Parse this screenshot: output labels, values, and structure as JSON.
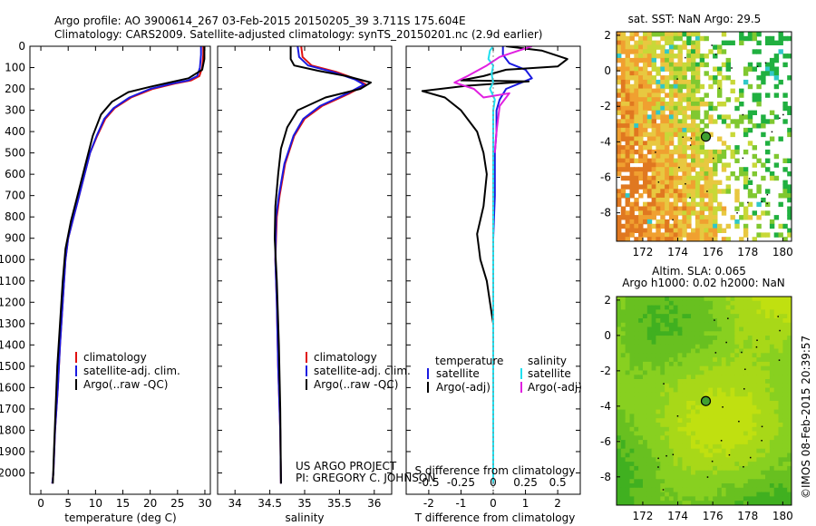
{
  "header": {
    "title_line1": "Argo profile: AO 3900614_267 03-Feb-2015 20150205_39 3.711S 175.604E",
    "title_line2": "Climatology: CARS2009. Satellite-adjusted climatology: synTS_20150201.nc (2.9d earlier)"
  },
  "credit": {
    "project": "US ARGO PROJECT",
    "pi": "PI: GREGORY C. JOHNSON"
  },
  "watermark": "©IMOS 08-Feb-2015 20:39:57",
  "colors": {
    "climatology": "#e01010",
    "satellite": "#1a1ae0",
    "argo": "#000000",
    "sal_satellite": "#20e0f0",
    "sal_argo": "#e020e0"
  },
  "chart_data": [
    {
      "type": "line",
      "id": "temperature",
      "xlabel": "temperature (deg C)",
      "ylim": [
        2100,
        0
      ],
      "xlim": [
        -2,
        31
      ],
      "xticks": [
        0,
        5,
        10,
        15,
        20,
        25,
        30
      ],
      "yticks": [
        0,
        100,
        200,
        300,
        400,
        500,
        600,
        700,
        800,
        900,
        1000,
        1100,
        1200,
        1300,
        1400,
        1500,
        1600,
        1700,
        1800,
        1900,
        2000
      ],
      "legend": [
        "climatology",
        "satellite-adj. clim.",
        "Argo(..raw -QC)"
      ],
      "series": [
        {
          "name": "climatology",
          "color": "#e01010",
          "points": [
            [
              29.7,
              0
            ],
            [
              29.7,
              40
            ],
            [
              29.5,
              100
            ],
            [
              29.0,
              140
            ],
            [
              27.5,
              160
            ],
            [
              24.5,
              175
            ],
            [
              20.5,
              200
            ],
            [
              16.5,
              240
            ],
            [
              13.5,
              290
            ],
            [
              11.8,
              340
            ],
            [
              10.3,
              420
            ],
            [
              9.0,
              500
            ],
            [
              8.0,
              600
            ],
            [
              7.0,
              700
            ],
            [
              6.0,
              800
            ],
            [
              5.0,
              900
            ],
            [
              4.5,
              1000
            ],
            [
              4.0,
              1200
            ],
            [
              3.5,
              1400
            ],
            [
              3.1,
              1600
            ],
            [
              2.6,
              1800
            ],
            [
              2.3,
              2000
            ],
            [
              2.1,
              2050
            ]
          ]
        },
        {
          "name": "satellite-adj. clim.",
          "color": "#1a1ae0",
          "points": [
            [
              29.3,
              0
            ],
            [
              29.3,
              40
            ],
            [
              29.1,
              100
            ],
            [
              28.6,
              140
            ],
            [
              27.0,
              160
            ],
            [
              24.0,
              175
            ],
            [
              20.0,
              200
            ],
            [
              16.2,
              240
            ],
            [
              13.3,
              290
            ],
            [
              11.6,
              340
            ],
            [
              10.2,
              420
            ],
            [
              9.0,
              500
            ],
            [
              8.0,
              600
            ],
            [
              7.0,
              700
            ],
            [
              6.0,
              800
            ],
            [
              5.0,
              900
            ],
            [
              4.5,
              1000
            ],
            [
              4.0,
              1200
            ],
            [
              3.5,
              1400
            ],
            [
              3.1,
              1600
            ],
            [
              2.6,
              1800
            ],
            [
              2.3,
              2000
            ],
            [
              2.1,
              2050
            ]
          ]
        },
        {
          "name": "Argo(..raw -QC)",
          "color": "#000000",
          "points": [
            [
              29.9,
              0
            ],
            [
              29.9,
              60
            ],
            [
              29.5,
              110
            ],
            [
              27.0,
              150
            ],
            [
              23.5,
              170
            ],
            [
              20.0,
              190
            ],
            [
              16.0,
              215
            ],
            [
              13.0,
              260
            ],
            [
              11.0,
              320
            ],
            [
              9.5,
              420
            ],
            [
              8.5,
              520
            ],
            [
              7.5,
              620
            ],
            [
              6.5,
              720
            ],
            [
              5.5,
              820
            ],
            [
              4.5,
              950
            ],
            [
              4.0,
              1100
            ],
            [
              3.5,
              1300
            ],
            [
              3.0,
              1500
            ],
            [
              2.7,
              1700
            ],
            [
              2.4,
              1900
            ],
            [
              2.2,
              2050
            ]
          ]
        }
      ]
    },
    {
      "type": "line",
      "id": "salinity",
      "xlabel": "salinity",
      "ylim": [
        2100,
        0
      ],
      "xlim": [
        33.75,
        36.25
      ],
      "xticks": [
        34,
        34.5,
        35,
        35.5,
        36
      ],
      "legend": [
        "climatology",
        "satellite-adj. clim.",
        "Argo(..raw -QC)"
      ],
      "series": [
        {
          "name": "climatology",
          "color": "#e01010",
          "points": [
            [
              34.95,
              0
            ],
            [
              34.97,
              50
            ],
            [
              35.1,
              90
            ],
            [
              35.45,
              120
            ],
            [
              35.75,
              155
            ],
            [
              35.88,
              180
            ],
            [
              35.65,
              220
            ],
            [
              35.25,
              280
            ],
            [
              35.0,
              340
            ],
            [
              34.85,
              420
            ],
            [
              34.72,
              550
            ],
            [
              34.64,
              700
            ],
            [
              34.6,
              800
            ],
            [
              34.58,
              1000
            ],
            [
              34.6,
              1200
            ],
            [
              34.62,
              1500
            ],
            [
              34.65,
              1800
            ],
            [
              34.66,
              2050
            ]
          ]
        },
        {
          "name": "satellite-adj. clim.",
          "color": "#1a1ae0",
          "points": [
            [
              34.9,
              0
            ],
            [
              34.92,
              50
            ],
            [
              35.05,
              90
            ],
            [
              35.4,
              120
            ],
            [
              35.72,
              155
            ],
            [
              35.85,
              180
            ],
            [
              35.62,
              220
            ],
            [
              35.22,
              280
            ],
            [
              34.98,
              340
            ],
            [
              34.84,
              420
            ],
            [
              34.71,
              550
            ],
            [
              34.63,
              700
            ],
            [
              34.59,
              800
            ],
            [
              34.58,
              1000
            ],
            [
              34.6,
              1200
            ],
            [
              34.62,
              1500
            ],
            [
              34.65,
              1800
            ],
            [
              34.66,
              2050
            ]
          ]
        },
        {
          "name": "Argo(..raw -QC)",
          "color": "#000000",
          "points": [
            [
              34.8,
              0
            ],
            [
              34.8,
              60
            ],
            [
              34.85,
              90
            ],
            [
              35.2,
              115
            ],
            [
              35.6,
              140
            ],
            [
              35.95,
              170
            ],
            [
              35.8,
              200
            ],
            [
              35.3,
              240
            ],
            [
              34.9,
              300
            ],
            [
              34.75,
              380
            ],
            [
              34.66,
              480
            ],
            [
              34.62,
              600
            ],
            [
              34.58,
              750
            ],
            [
              34.57,
              900
            ],
            [
              34.6,
              1100
            ],
            [
              34.63,
              1400
            ],
            [
              34.65,
              1700
            ],
            [
              34.66,
              2050
            ]
          ]
        }
      ]
    },
    {
      "type": "line",
      "id": "difference",
      "xlabel": "T difference from climatology",
      "xlabel_top": "S difference from climatology",
      "xlim": [
        -2.7,
        2.7
      ],
      "xticks": [
        -2,
        -1,
        0,
        1,
        2
      ],
      "xlim_top": [
        -0.675,
        0.675
      ],
      "xticks_top": [
        -0.5,
        -0.25,
        0,
        0.25,
        0.5
      ],
      "xticklabels_top": [
        "-0.5",
        "-0.25",
        "0",
        "0.25",
        "0.5"
      ],
      "ylim": [
        2100,
        0
      ],
      "legend_temperature": {
        "title": "temperature",
        "entries": [
          "satellite",
          "Argo(-adj)"
        ]
      },
      "legend_salinity": {
        "title": "salinity",
        "entries": [
          "satellite",
          "Argo(-adj)"
        ]
      },
      "series": [
        {
          "name": "T satellite",
          "color": "#1a1ae0",
          "points": [
            [
              0.3,
              0
            ],
            [
              0.3,
              40
            ],
            [
              0.5,
              80
            ],
            [
              1.0,
              110
            ],
            [
              1.2,
              150
            ],
            [
              0.8,
              175
            ],
            [
              0.4,
              200
            ],
            [
              0.2,
              250
            ],
            [
              0.1,
              300
            ],
            [
              0.1,
              400
            ],
            [
              0.05,
              500
            ],
            [
              0.05,
              700
            ],
            [
              0,
              900
            ],
            [
              0,
              1200
            ],
            [
              0,
              1600
            ],
            [
              0,
              2050
            ]
          ]
        },
        {
          "name": "T Argo(-adj)",
          "color": "#000000",
          "points": [
            [
              0.4,
              0
            ],
            [
              1.5,
              20
            ],
            [
              2.3,
              60
            ],
            [
              2.0,
              95
            ],
            [
              0.4,
              110
            ],
            [
              -0.3,
              140
            ],
            [
              -1.0,
              160
            ],
            [
              1.1,
              165
            ],
            [
              -0.8,
              185
            ],
            [
              -2.2,
              210
            ],
            [
              -1.5,
              240
            ],
            [
              -1.0,
              300
            ],
            [
              -0.5,
              400
            ],
            [
              -0.3,
              500
            ],
            [
              -0.2,
              600
            ],
            [
              -0.3,
              750
            ],
            [
              -0.5,
              880
            ],
            [
              -0.4,
              1000
            ],
            [
              -0.2,
              1100
            ],
            [
              -0.1,
              1200
            ],
            [
              0,
              1300
            ],
            [
              0,
              1600
            ],
            [
              0,
              2050
            ]
          ]
        },
        {
          "name": "S satellite",
          "color": "#20e0f0",
          "points": [
            [
              0.0,
              0
            ],
            [
              -0.1,
              20
            ],
            [
              -0.15,
              60
            ],
            [
              0.0,
              90
            ],
            [
              -0.05,
              130
            ],
            [
              0.0,
              170
            ],
            [
              -0.1,
              200
            ],
            [
              0.05,
              250
            ],
            [
              0,
              300
            ],
            [
              0,
              500
            ],
            [
              0,
              2050
            ]
          ]
        },
        {
          "name": "S Argo(-adj)",
          "color": "#e020e0",
          "points": [
            [
              1.2,
              0
            ],
            [
              0.8,
              20
            ],
            [
              0.2,
              50
            ],
            [
              -0.2,
              90
            ],
            [
              -0.8,
              140
            ],
            [
              -1.2,
              170
            ],
            [
              -0.6,
              200
            ],
            [
              -0.3,
              240
            ],
            [
              0.5,
              220
            ],
            [
              0.2,
              280
            ],
            [
              0.1,
              400
            ],
            [
              0.05,
              500
            ]
          ]
        }
      ]
    },
    {
      "type": "heatmap",
      "id": "sst_map",
      "title": "sat. SST: NaN Argo: 29.5",
      "xlim": [
        170.5,
        180.5
      ],
      "ylim": [
        -9.6,
        2.2
      ],
      "xticks": [
        172,
        174,
        176,
        178,
        180
      ],
      "yticks": [
        2,
        0,
        -2,
        -4,
        -6,
        -8
      ],
      "argo_position": {
        "lon": 175.604,
        "lat": -3.711
      }
    },
    {
      "type": "heatmap",
      "id": "sla_map",
      "title": "Altim. SLA: 0.065",
      "subtitle": "Argo h1000: 0.02 h2000: NaN",
      "xlim": [
        170.5,
        180.5
      ],
      "ylim": [
        -9.6,
        2.2
      ],
      "xticks": [
        172,
        174,
        176,
        178,
        180
      ],
      "yticks": [
        2,
        0,
        -2,
        -4,
        -6,
        -8
      ],
      "argo_position": {
        "lon": 175.604,
        "lat": -3.711
      }
    }
  ]
}
